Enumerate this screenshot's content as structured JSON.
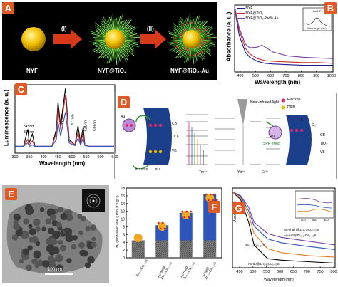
{
  "figure": {
    "panel_labels": [
      "A",
      "B",
      "C",
      "D",
      "E",
      "F",
      "G"
    ]
  },
  "panelA": {
    "step1": "(I)",
    "step2": "(II)",
    "cap1": "NYF",
    "cap2": "NYF@TiO₂",
    "cap3": "NYF@TiO₂-Au"
  },
  "panelB": {
    "ylabel": "Absorbance (a. u.)",
    "xlabel": "Wavelength (nm)",
    "ticks": [
      "400",
      "500",
      "600",
      "700",
      "800",
      "900",
      "1000"
    ],
    "legend": [
      "NYF",
      "NYF@TiO₂",
      "NYF@TiO₂-2wt% Au"
    ],
    "inset_title": "Au NPs",
    "inset_ylabel": "Absorbance",
    "inset_xlabel": "Wavelength (nm)"
  },
  "panelC": {
    "ylabel": "Luminescence (a. u.)",
    "xlabel": "Wavelength (nm)",
    "ticks": [
      "300",
      "350",
      "400",
      "450",
      "500",
      "550",
      "600",
      "650"
    ],
    "peaks": [
      "345nm",
      "361nm",
      "451nm",
      "477nm",
      "521 nm",
      "539 nm"
    ]
  },
  "panelD": {
    "legend": [
      "Electron",
      "Hole"
    ],
    "labels": [
      "Au",
      "CB",
      "TiO₂",
      "VB",
      "OH⁻/H₂O",
      "OH·",
      "Near-infrared light",
      "Tm³⁺",
      "Yb³⁺",
      "Er³⁺",
      "SPR effect",
      "O₂",
      "O₂⁻",
      "Au"
    ]
  },
  "panelE": {
    "scale": "100 nm"
  },
  "panelF": {
    "ylabel": "H₂ generation rate (μmol h⁻¹ g⁻¹)",
    "ticks": [
      "0",
      "2",
      "4",
      "6",
      "8",
      "10",
      "12",
      "14",
      "16",
      "18"
    ],
    "cats": [
      "Zn₀.₆₇Cd₀.₃₃S",
      "Au-dot@ Zn₀.₆₇Cd₀.₃₃S",
      "Au-rod@ Zn₀.₆₇Cd₀.₃₃S",
      "Au-tip@ Zn₀.₆₇Cd₀.₃₃S"
    ]
  },
  "panelG": {
    "ylabel": "Absorbance",
    "xlabel": "Wavelength (nm)",
    "ticks": [
      "450",
      "500",
      "550",
      "600",
      "650",
      "700",
      "750",
      "800"
    ],
    "inset_ticks": [
      "500",
      "550",
      "600"
    ],
    "series": [
      "Zn₀.₆₇Cd₀.₃₃S",
      "Au-chain@Zn₀.₆₇Cd₀.₃₃S",
      "Au-rod@Zn₀.₆₇Cd₀.₃₃S",
      "Au-tip@Zn₀.₆₇Cd₀.₃₃S"
    ]
  },
  "chart_data": [
    {
      "type": "bar",
      "categories": [
        "Zn0.67Cd0.33S",
        "Au-dot@Zn0.67Cd0.33S",
        "Au-rod@Zn0.67Cd0.33S",
        "Au-tip@Zn0.67Cd0.33S"
      ],
      "series": [
        {
          "values": [
            4.5,
            4.5,
            4.5,
            4.5
          ]
        },
        {
          "values": [
            0,
            3.9,
            7.1,
            12.0
          ]
        }
      ],
      "ylim": [
        0,
        18
      ],
      "colors": [
        "#888888",
        "#2e55b8"
      ]
    },
    {
      "type": "line",
      "xlim": [
        350,
        1000
      ],
      "series": [
        {
          "x": [
            350,
            380,
            420,
            450,
            500,
            550,
            600,
            700,
            800,
            900,
            1000
          ],
          "y": [
            0.95,
            0.55,
            0.3,
            0.22,
            0.16,
            0.13,
            0.12,
            0.11,
            0.1,
            0.1,
            0.1
          ],
          "color": "#1a1a8c"
        },
        {
          "x": [
            350,
            380,
            420,
            450,
            500,
            550,
            600,
            700,
            800,
            900,
            1000
          ],
          "y": [
            0.96,
            0.62,
            0.36,
            0.27,
            0.2,
            0.17,
            0.16,
            0.15,
            0.14,
            0.14,
            0.13
          ],
          "color": "#cc2a2a"
        },
        {
          "x": [
            350,
            380,
            420,
            450,
            500,
            530,
            560,
            600,
            700,
            800,
            900,
            1000
          ],
          "y": [
            0.98,
            0.66,
            0.42,
            0.36,
            0.37,
            0.4,
            0.36,
            0.3,
            0.24,
            0.22,
            0.21,
            0.2
          ],
          "color": "#7a3fa3"
        }
      ]
    },
    {
      "type": "line",
      "xlim": [
        300,
        650
      ],
      "series": [
        {
          "x": [
            300,
            330,
            345,
            350,
            361,
            370,
            430,
            445,
            451,
            460,
            477,
            490,
            510,
            521,
            530,
            539,
            545,
            560,
            600,
            630,
            650
          ],
          "y": [
            0.1,
            0.1,
            0.35,
            0.15,
            0.28,
            0.1,
            0.1,
            0.35,
            0.75,
            0.4,
            0.95,
            0.2,
            0.12,
            0.4,
            0.15,
            0.38,
            0.12,
            0.1,
            0.1,
            0.1,
            0.1
          ],
          "color": "#000000"
        },
        {
          "x": [
            300,
            330,
            345,
            350,
            361,
            370,
            430,
            445,
            451,
            460,
            477,
            490,
            510,
            521,
            530,
            539,
            545,
            560,
            600,
            630,
            650
          ],
          "y": [
            0.1,
            0.1,
            0.2,
            0.12,
            0.18,
            0.1,
            0.1,
            0.3,
            0.65,
            0.35,
            0.85,
            0.18,
            0.12,
            0.3,
            0.14,
            0.3,
            0.12,
            0.1,
            0.1,
            0.1,
            0.1
          ],
          "color": "#cc2a2a"
        },
        {
          "x": [
            300,
            330,
            345,
            350,
            361,
            370,
            430,
            445,
            451,
            460,
            477,
            490,
            510,
            521,
            530,
            539,
            545,
            560,
            600,
            630,
            650
          ],
          "y": [
            0.1,
            0.1,
            0.15,
            0.1,
            0.12,
            0.1,
            0.1,
            0.2,
            0.45,
            0.25,
            0.6,
            0.15,
            0.11,
            0.22,
            0.12,
            0.22,
            0.11,
            0.1,
            0.1,
            0.1,
            0.1
          ],
          "color": "#2e55b8"
        }
      ]
    },
    {
      "type": "line",
      "xlim": [
        420,
        800
      ],
      "series": [
        {
          "x": [
            420,
            450,
            480,
            500,
            550,
            600,
            700,
            800
          ],
          "y": [
            1.0,
            0.9,
            0.6,
            0.3,
            0.12,
            0.1,
            0.08,
            0.06
          ],
          "color": "#000000"
        },
        {
          "x": [
            420,
            450,
            480,
            500,
            550,
            600,
            700,
            800
          ],
          "y": [
            1.0,
            0.95,
            0.8,
            0.6,
            0.45,
            0.4,
            0.35,
            0.3
          ],
          "color": "#7a3fa3"
        },
        {
          "x": [
            420,
            450,
            480,
            500,
            550,
            600,
            700,
            800
          ],
          "y": [
            1.0,
            0.94,
            0.75,
            0.55,
            0.38,
            0.33,
            0.28,
            0.24
          ],
          "color": "#2e55b8"
        },
        {
          "x": [
            420,
            450,
            480,
            500,
            550,
            600,
            700,
            800
          ],
          "y": [
            1.0,
            0.92,
            0.7,
            0.45,
            0.25,
            0.2,
            0.16,
            0.14
          ],
          "color": "#e07a20"
        }
      ]
    }
  ]
}
